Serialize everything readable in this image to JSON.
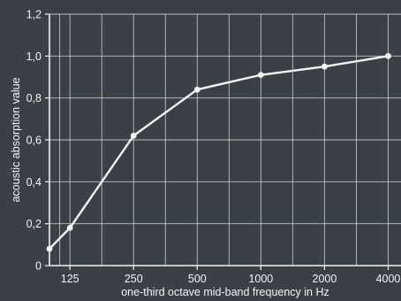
{
  "colors": {
    "background": "#3a4046",
    "foreground": "#f4f4f4"
  },
  "chart_data": {
    "type": "line",
    "xlabel": "one-third octave mid-band frequency in Hz",
    "ylabel": "acoustic absorption value",
    "x_scale": "log",
    "xlim": [
      100,
      4600
    ],
    "ylim": [
      0,
      1.2
    ],
    "grid": true,
    "legend": "none",
    "x_ticks": [
      125,
      250,
      500,
      1000,
      2000,
      4000
    ],
    "x_tick_labels": [
      "125",
      "250",
      "500",
      "1000",
      "2000",
      "4000"
    ],
    "y_ticks": [
      0,
      0.2,
      0.4,
      0.6,
      0.8,
      1.0,
      1.2
    ],
    "y_tick_labels": [
      "0",
      "0,2",
      "0,4",
      "0,6",
      "0,8",
      "1,0",
      "1,2"
    ],
    "series": [
      {
        "x": [
          100,
          125,
          250,
          500,
          1000,
          2000,
          4000
        ],
        "y": [
          0.08,
          0.18,
          0.62,
          0.84,
          0.91,
          0.95,
          1.0
        ]
      }
    ]
  }
}
